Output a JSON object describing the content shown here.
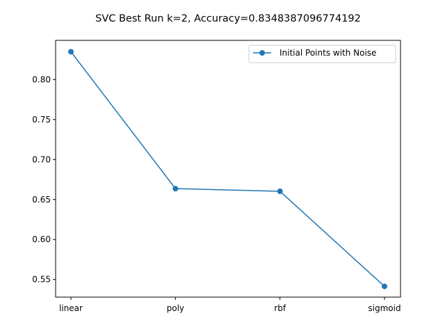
{
  "chart_data": {
    "type": "line",
    "title": "SVC Best Run k=2, Accuracy=0.8348387096774192",
    "xlabel": "",
    "ylabel": "",
    "categories": [
      "linear",
      "poly",
      "rbf",
      "sigmoid"
    ],
    "series": [
      {
        "name": "Initial Points with Noise",
        "values": [
          0.8348,
          0.6636,
          0.6603,
          0.5414
        ],
        "color": "#1f77b4",
        "marker": "circle"
      }
    ],
    "ylim": [
      0.528,
      0.849
    ],
    "yticks": [
      0.55,
      0.6,
      0.65,
      0.7,
      0.75,
      0.8
    ],
    "ytick_labels": [
      "0.55",
      "0.60",
      "0.65",
      "0.70",
      "0.75",
      "0.80"
    ],
    "grid": false,
    "legend_position": "top-right"
  }
}
